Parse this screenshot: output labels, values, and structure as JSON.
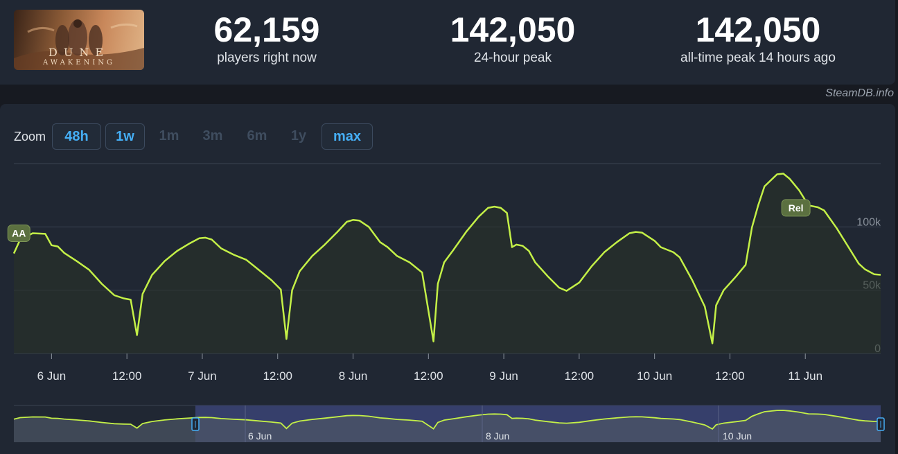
{
  "game": {
    "logo_title": "DUNE",
    "logo_subtitle": "AWAKENING"
  },
  "stats": [
    {
      "value": "62,159",
      "label": "players right now"
    },
    {
      "value": "142,050",
      "label": "24-hour peak"
    },
    {
      "value": "142,050",
      "label": "all-time peak 14 hours ago"
    }
  ],
  "source": "SteamDB.info",
  "zoom": {
    "label": "Zoom",
    "options": [
      {
        "label": "48h",
        "active": true
      },
      {
        "label": "1w",
        "active": true
      },
      {
        "label": "1m",
        "active": false
      },
      {
        "label": "3m",
        "active": false
      },
      {
        "label": "6m",
        "active": false
      },
      {
        "label": "1y",
        "active": false
      },
      {
        "label": "max",
        "active": true
      }
    ]
  },
  "colors": {
    "line": "#c4f047",
    "accent": "#45aef5",
    "flag_fill": "#5b7040"
  },
  "chart_data": {
    "type": "line",
    "title": "",
    "xlabel": "",
    "ylabel": "",
    "ylim": [
      0,
      150000
    ],
    "grid": true,
    "y_ticks": [
      {
        "value": 0,
        "label": "0"
      },
      {
        "value": 50000,
        "label": "50k"
      },
      {
        "value": 100000,
        "label": "100k"
      }
    ],
    "x_ticks": [
      "6 Jun",
      "12:00",
      "7 Jun",
      "12:00",
      "8 Jun",
      "12:00",
      "9 Jun",
      "12:00",
      "10 Jun",
      "12:00",
      "11 Jun"
    ],
    "navigator_labels": [
      "6 Jun",
      "8 Jun",
      "10 Jun"
    ],
    "flags": [
      {
        "label": "AA",
        "hours": 0.8,
        "value": 95000
      },
      {
        "label": "Rel",
        "hours": 124.5,
        "value": 115000
      }
    ],
    "x_unit": "hours after 5 Jun 18:00",
    "series": [
      {
        "points": [
          [
            0,
            79000
          ],
          [
            1,
            90000
          ],
          [
            3,
            95000
          ],
          [
            5,
            94500
          ],
          [
            6,
            85500
          ],
          [
            7,
            84500
          ],
          [
            8,
            79500
          ],
          [
            10,
            73000
          ],
          [
            12,
            66000
          ],
          [
            14,
            55000
          ],
          [
            16,
            46000
          ],
          [
            17.5,
            43500
          ],
          [
            18.6,
            42500
          ],
          [
            19.6,
            14500
          ],
          [
            20.5,
            47000
          ],
          [
            22,
            62000
          ],
          [
            24,
            73000
          ],
          [
            26,
            81000
          ],
          [
            28,
            87000
          ],
          [
            29.5,
            91000
          ],
          [
            30.5,
            91500
          ],
          [
            31.5,
            90000
          ],
          [
            33,
            83000
          ],
          [
            35,
            78000
          ],
          [
            37,
            74000
          ],
          [
            39,
            66000
          ],
          [
            41,
            58000
          ],
          [
            42.5,
            50500
          ],
          [
            43.4,
            11500
          ],
          [
            44.3,
            50000
          ],
          [
            45.5,
            65000
          ],
          [
            47.5,
            77000
          ],
          [
            49.5,
            86000
          ],
          [
            51.5,
            96000
          ],
          [
            53,
            104000
          ],
          [
            54,
            105500
          ],
          [
            55,
            105000
          ],
          [
            56.5,
            100000
          ],
          [
            58.3,
            88000
          ],
          [
            59.5,
            84000
          ],
          [
            61,
            77000
          ],
          [
            63,
            72000
          ],
          [
            65,
            64000
          ],
          [
            66.8,
            9500
          ],
          [
            67.5,
            55000
          ],
          [
            68.5,
            72000
          ],
          [
            70,
            82000
          ],
          [
            72,
            96000
          ],
          [
            74,
            108000
          ],
          [
            75.5,
            115000
          ],
          [
            76.5,
            116000
          ],
          [
            77.5,
            115000
          ],
          [
            78.5,
            111000
          ],
          [
            79.3,
            84000
          ],
          [
            80,
            86000
          ],
          [
            81,
            85000
          ],
          [
            82,
            81000
          ],
          [
            83,
            72000
          ],
          [
            85,
            61000
          ],
          [
            86.8,
            52000
          ],
          [
            88,
            49500
          ],
          [
            90,
            56000
          ],
          [
            92,
            69000
          ],
          [
            94,
            80000
          ],
          [
            96,
            88000
          ],
          [
            98,
            95000
          ],
          [
            99,
            96000
          ],
          [
            100,
            95500
          ],
          [
            102,
            89000
          ],
          [
            103,
            84000
          ],
          [
            105,
            80000
          ],
          [
            106,
            76000
          ],
          [
            108,
            58000
          ],
          [
            110,
            37000
          ],
          [
            111.2,
            8000
          ],
          [
            111.8,
            38000
          ],
          [
            113,
            50000
          ],
          [
            115,
            61000
          ],
          [
            116.5,
            70000
          ],
          [
            117.5,
            99500
          ],
          [
            118.5,
            117000
          ],
          [
            119.5,
            132000
          ],
          [
            121.5,
            141500
          ],
          [
            122.5,
            142050
          ],
          [
            123.5,
            138000
          ],
          [
            125,
            129000
          ],
          [
            126.5,
            117000
          ],
          [
            128,
            115500
          ],
          [
            129,
            113000
          ],
          [
            131,
            99000
          ],
          [
            133,
            83000
          ],
          [
            134.5,
            71000
          ],
          [
            135.5,
            66500
          ],
          [
            137,
            62500
          ],
          [
            138,
            62159
          ]
        ]
      }
    ]
  }
}
